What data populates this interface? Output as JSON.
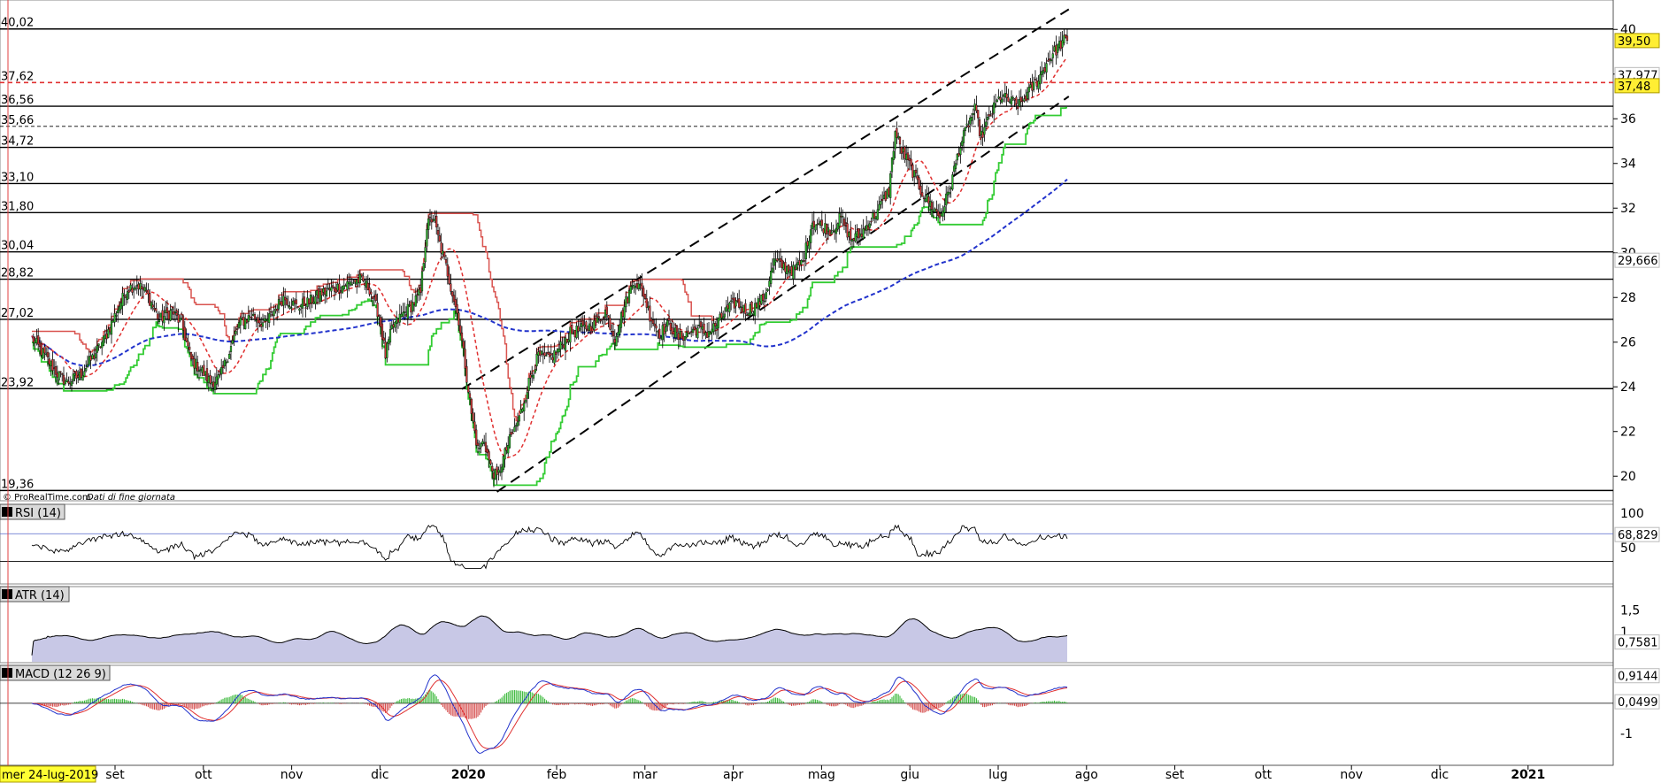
{
  "watermark": "© ProRealTime.com",
  "watermark_note": "Dati di fine giornata",
  "date_label": "mer 24-lug-2019",
  "colors": {
    "up": "#2fb52f",
    "down": "#d13a3a",
    "kijun_red": "#d9534f",
    "tenkan_green": "#33cc33",
    "ma_blue": "#2233cc",
    "ma_red": "#e03030",
    "trend": "#000000",
    "rsi": "#000000",
    "atr_fill": "#c8c8e6",
    "macd": "#2233cc",
    "signal": "#e03030"
  },
  "chart_data": {
    "type": "candlestick",
    "x_start": "2019-07-24",
    "months": [
      "set",
      "ott",
      "nov",
      "dic",
      "2020",
      "feb",
      "mar",
      "apr",
      "mag",
      "giu",
      "lug",
      "ago",
      "set",
      "ott",
      "nov",
      "dic",
      "2021"
    ],
    "price_axis": {
      "ylim": [
        18.9,
        41.0
      ],
      "ticks": [
        20,
        22,
        24,
        26,
        28,
        30,
        32,
        34,
        36,
        38,
        40
      ]
    },
    "horizontal_levels": [
      {
        "label": "40,02",
        "value": 40.02
      },
      {
        "label": "37,62",
        "value": 37.62
      },
      {
        "label": "36,56",
        "value": 36.56
      },
      {
        "label": "35,66",
        "value": 35.66
      },
      {
        "label": "34,72",
        "value": 34.72
      },
      {
        "label": "33,10",
        "value": 33.1
      },
      {
        "label": "31,80",
        "value": 31.8
      },
      {
        "label": "30,04",
        "value": 30.04
      },
      {
        "label": "28,82",
        "value": 28.82
      },
      {
        "label": "27,02",
        "value": 27.02
      },
      {
        "label": "23,92",
        "value": 23.92
      },
      {
        "label": "19,36",
        "value": 19.36
      }
    ],
    "right_badges": [
      {
        "label": "39,50",
        "value": 39.5,
        "style": "yellow"
      },
      {
        "label": "37,977",
        "value": 37.977,
        "style": "red"
      },
      {
        "label": "37,48",
        "value": 37.48,
        "style": "yellow"
      },
      {
        "label": "29,666",
        "value": 29.666,
        "style": "blue"
      }
    ],
    "close_anchors": [
      [
        0,
        26.2
      ],
      [
        8,
        25.4
      ],
      [
        16,
        24.6
      ],
      [
        22,
        24.2
      ],
      [
        30,
        24.5
      ],
      [
        38,
        25.3
      ],
      [
        46,
        26.2
      ],
      [
        54,
        27.5
      ],
      [
        60,
        28.4
      ],
      [
        66,
        28.6
      ],
      [
        72,
        28.2
      ],
      [
        80,
        27.0
      ],
      [
        88,
        27.4
      ],
      [
        94,
        26.8
      ],
      [
        100,
        25.2
      ],
      [
        106,
        24.8
      ],
      [
        112,
        24.2
      ],
      [
        118,
        24.4
      ],
      [
        124,
        25.6
      ],
      [
        130,
        26.8
      ],
      [
        138,
        27.2
      ],
      [
        146,
        26.8
      ],
      [
        152,
        27.4
      ],
      [
        158,
        28.0
      ],
      [
        166,
        27.6
      ],
      [
        174,
        27.8
      ],
      [
        182,
        28.2
      ],
      [
        190,
        28.4
      ],
      [
        198,
        28.6
      ],
      [
        206,
        28.8
      ],
      [
        212,
        28.4
      ],
      [
        218,
        27.2
      ],
      [
        222,
        25.4
      ],
      [
        226,
        26.6
      ],
      [
        232,
        27.2
      ],
      [
        238,
        27.6
      ],
      [
        244,
        28.2
      ],
      [
        248,
        31.2
      ],
      [
        252,
        31.6
      ],
      [
        256,
        30.4
      ],
      [
        260,
        29.4
      ],
      [
        264,
        28.2
      ],
      [
        268,
        27.0
      ],
      [
        272,
        25.0
      ],
      [
        276,
        22.8
      ],
      [
        280,
        21.2
      ],
      [
        284,
        21.6
      ],
      [
        288,
        20.4
      ],
      [
        292,
        19.9
      ],
      [
        296,
        20.8
      ],
      [
        300,
        21.6
      ],
      [
        306,
        22.6
      ],
      [
        312,
        24.2
      ],
      [
        318,
        25.4
      ],
      [
        324,
        25.2
      ],
      [
        330,
        25.6
      ],
      [
        338,
        26.4
      ],
      [
        346,
        26.6
      ],
      [
        354,
        26.8
      ],
      [
        360,
        27.4
      ],
      [
        366,
        26.2
      ],
      [
        372,
        27.6
      ],
      [
        378,
        28.8
      ],
      [
        384,
        28.2
      ],
      [
        388,
        27.2
      ],
      [
        394,
        26.4
      ],
      [
        400,
        26.8
      ],
      [
        406,
        26.2
      ],
      [
        412,
        26.4
      ],
      [
        418,
        26.6
      ],
      [
        424,
        26.4
      ],
      [
        430,
        26.8
      ],
      [
        436,
        27.4
      ],
      [
        442,
        27.8
      ],
      [
        448,
        27.4
      ],
      [
        454,
        27.6
      ],
      [
        460,
        28.0
      ],
      [
        466,
        29.6
      ],
      [
        472,
        29.4
      ],
      [
        478,
        29.2
      ],
      [
        484,
        29.6
      ],
      [
        490,
        31.4
      ],
      [
        496,
        31.2
      ],
      [
        502,
        31.0
      ],
      [
        508,
        31.6
      ],
      [
        514,
        30.6
      ],
      [
        520,
        30.8
      ],
      [
        526,
        31.4
      ],
      [
        532,
        32.0
      ],
      [
        538,
        32.8
      ],
      [
        542,
        35.4
      ],
      [
        546,
        34.6
      ],
      [
        552,
        33.8
      ],
      [
        558,
        32.8
      ],
      [
        564,
        32.2
      ],
      [
        570,
        31.6
      ],
      [
        576,
        32.8
      ],
      [
        582,
        34.6
      ],
      [
        588,
        35.8
      ],
      [
        592,
        36.4
      ],
      [
        596,
        35.2
      ],
      [
        602,
        36.2
      ],
      [
        608,
        37.0
      ],
      [
        614,
        36.8
      ],
      [
        620,
        36.6
      ],
      [
        626,
        37.2
      ],
      [
        632,
        37.8
      ],
      [
        638,
        38.6
      ],
      [
        644,
        39.2
      ],
      [
        648,
        39.5
      ]
    ],
    "trend_lines": [
      {
        "from": [
          270,
          23.9
        ],
        "to": [
          651,
          40.9
        ]
      },
      {
        "from": [
          292,
          19.3
        ],
        "to": [
          651,
          37.0
        ]
      }
    ],
    "rsi": {
      "label": "RSI (14)",
      "levels": [
        70,
        30
      ],
      "ticks": [
        "100",
        "50"
      ],
      "last_label": "68,829",
      "last": 68.829,
      "ylim": [
        0,
        110
      ]
    },
    "atr": {
      "label": "ATR (14)",
      "ticks": [
        "1,5",
        "1"
      ],
      "last_label": "0,7581",
      "last": 0.7581,
      "ylim": [
        0.3,
        2.0
      ]
    },
    "macd": {
      "label": "MACD (12 26 9)",
      "ticks": [
        "-1"
      ],
      "labels": [
        "0,9144",
        "0,0499"
      ],
      "macd_last": 0.9144,
      "hist_last": 0.0499,
      "ylim": [
        -2.0,
        1.2
      ]
    }
  }
}
